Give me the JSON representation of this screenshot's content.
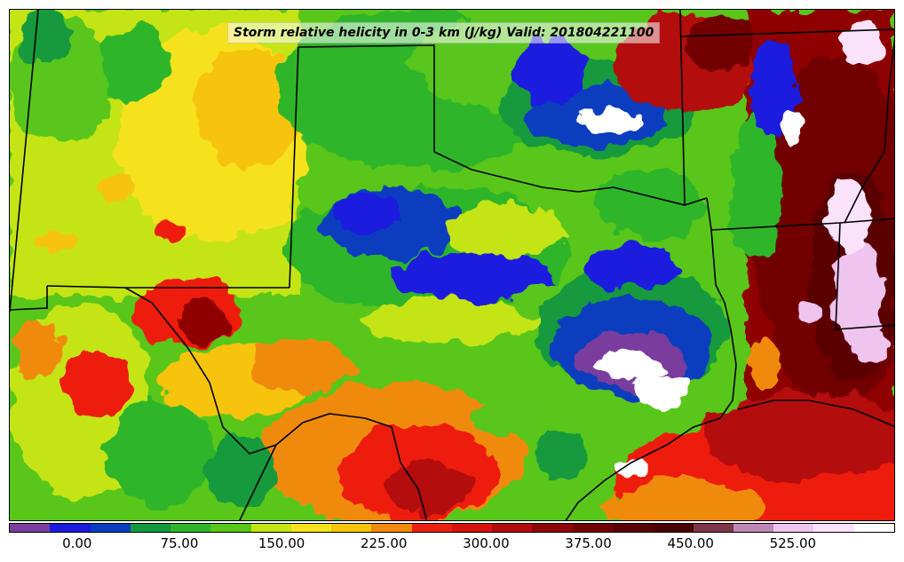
{
  "title": "Storm relative helicity in 0-3 km (J/kg) Valid: 201804221100",
  "map": {
    "region": "Southern Plains / Texas",
    "field": "storm relative helicity 0-3 km",
    "units": "J/kg",
    "land_outline_color": "#000000",
    "fill_levels_colors": [
      "#7a3e9d",
      "#1a1adf",
      "#0a3dbf",
      "#129a3c",
      "#2fb52a",
      "#59c61a",
      "#c5e413",
      "#f6e21a",
      "#f6c40a",
      "#f08a0b",
      "#ee1f11",
      "#d6110e",
      "#b40b0b",
      "#8f0606",
      "#720404",
      "#5a0304",
      "#4a0303",
      "#803548",
      "#bf87b7",
      "#efc4ef",
      "#fbe2fb"
    ]
  },
  "colorbar": {
    "colors": [
      "#7a3e9d",
      "#1a1adf",
      "#0a3dbf",
      "#129a3c",
      "#2fb52a",
      "#59c61a",
      "#c5e413",
      "#f6e21a",
      "#f6c40a",
      "#f08a0b",
      "#ee1f11",
      "#d6110e",
      "#b40b0b",
      "#8f0606",
      "#720404",
      "#5a0304",
      "#4a0303",
      "#803548",
      "#bf87b7",
      "#efc4ef",
      "#fbe2fb",
      "#ffffff"
    ],
    "tick_labels": [
      "0.00",
      "75.00",
      "150.00",
      "225.00",
      "300.00",
      "375.00",
      "450.00",
      "525.00"
    ],
    "tick_values": [
      0,
      75,
      150,
      225,
      300,
      375,
      450,
      525
    ],
    "range": [
      -50,
      600
    ]
  }
}
